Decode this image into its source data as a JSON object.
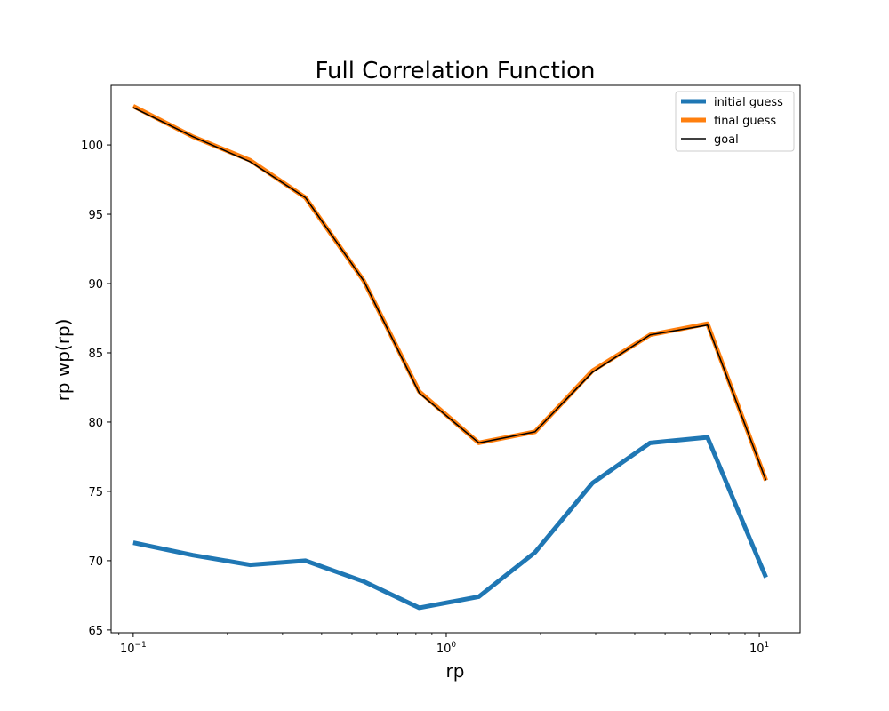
{
  "chart_data": {
    "type": "line",
    "title": "Full Correlation Function",
    "xlabel": "rp",
    "ylabel": "rp wp(rp)",
    "xscale": "log",
    "xlim": [
      0.085,
      13.5
    ],
    "ylim": [
      64.8,
      104.3
    ],
    "yticks": [
      65,
      70,
      75,
      80,
      85,
      90,
      95,
      100
    ],
    "xticks": [
      {
        "value": 0.1,
        "base": "10",
        "exp": "−1"
      },
      {
        "value": 1,
        "base": "10",
        "exp": "0"
      },
      {
        "value": 10,
        "base": "10",
        "exp": "1"
      }
    ],
    "grid": false,
    "legend_position": "top-right",
    "x": [
      0.1,
      0.155,
      0.236,
      0.355,
      0.545,
      0.82,
      1.27,
      1.92,
      2.93,
      4.48,
      6.83,
      10.5
    ],
    "series": [
      {
        "name": "initial guess",
        "color": "#1f77b4",
        "values": [
          71.3,
          70.4,
          69.7,
          70.0,
          68.5,
          66.6,
          67.4,
          70.6,
          75.6,
          78.5,
          78.9,
          68.8
        ]
      },
      {
        "name": "final guess",
        "color": "#ff7f0e",
        "values": [
          102.8,
          100.6,
          98.9,
          96.2,
          90.2,
          82.2,
          78.5,
          79.3,
          83.7,
          86.3,
          87.1,
          75.8
        ]
      },
      {
        "name": "goal",
        "color": "#000000",
        "values": [
          102.7,
          100.6,
          98.8,
          96.2,
          90.2,
          82.1,
          78.5,
          79.3,
          83.6,
          86.3,
          87.0,
          75.8
        ]
      }
    ]
  }
}
